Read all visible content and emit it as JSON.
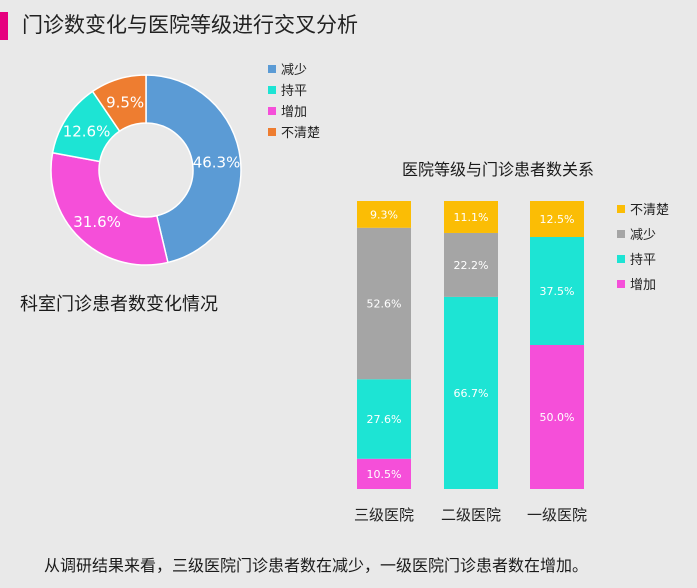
{
  "page": {
    "title": "门诊数变化与医院等级进行交叉分析",
    "conclusion": "从调研结果来看，三级医院门诊患者数在减少，一级医院门诊患者数在增加。"
  },
  "chart_data": [
    {
      "type": "pie",
      "subtype": "donut",
      "title": "科室门诊患者数变化情况",
      "legend_position": "right",
      "categories": [
        "减少",
        "持平",
        "增加",
        "不清楚"
      ],
      "values": [
        46.3,
        12.6,
        31.6,
        9.5
      ],
      "labels": [
        "46.3%",
        "12.6%",
        "31.6%",
        "9.5%"
      ],
      "colors": [
        "#5b9bd5",
        "#1de4d4",
        "#f54fd9",
        "#ee7d30"
      ],
      "slice_order": [
        "减少",
        "增加",
        "持平",
        "不清楚"
      ]
    },
    {
      "type": "bar",
      "subtype": "stacked-100",
      "title": "医院等级与门诊患者数关系",
      "legend_position": "right",
      "categories": [
        "三级医院",
        "二级医院",
        "一级医院"
      ],
      "series": [
        {
          "name": "增加",
          "color": "#f54fd9",
          "values": [
            10.5,
            0,
            50.0
          ],
          "labels": [
            "10.5%",
            "",
            "50.0%"
          ]
        },
        {
          "name": "持平",
          "color": "#1de4d4",
          "values": [
            27.6,
            66.7,
            37.5
          ],
          "labels": [
            "27.6%",
            "66.7%",
            "37.5%"
          ]
        },
        {
          "name": "减少",
          "color": "#a5a5a5",
          "values": [
            52.6,
            22.2,
            0
          ],
          "labels": [
            "52.6%",
            "22.2%",
            ""
          ]
        },
        {
          "name": "不清楚",
          "color": "#fbbd05",
          "values": [
            9.3,
            11.1,
            12.5
          ],
          "labels": [
            "9.3%",
            "11.1%",
            "12.5%"
          ]
        }
      ],
      "legend_order": [
        "不清楚",
        "减少",
        "持平",
        "增加"
      ]
    }
  ]
}
